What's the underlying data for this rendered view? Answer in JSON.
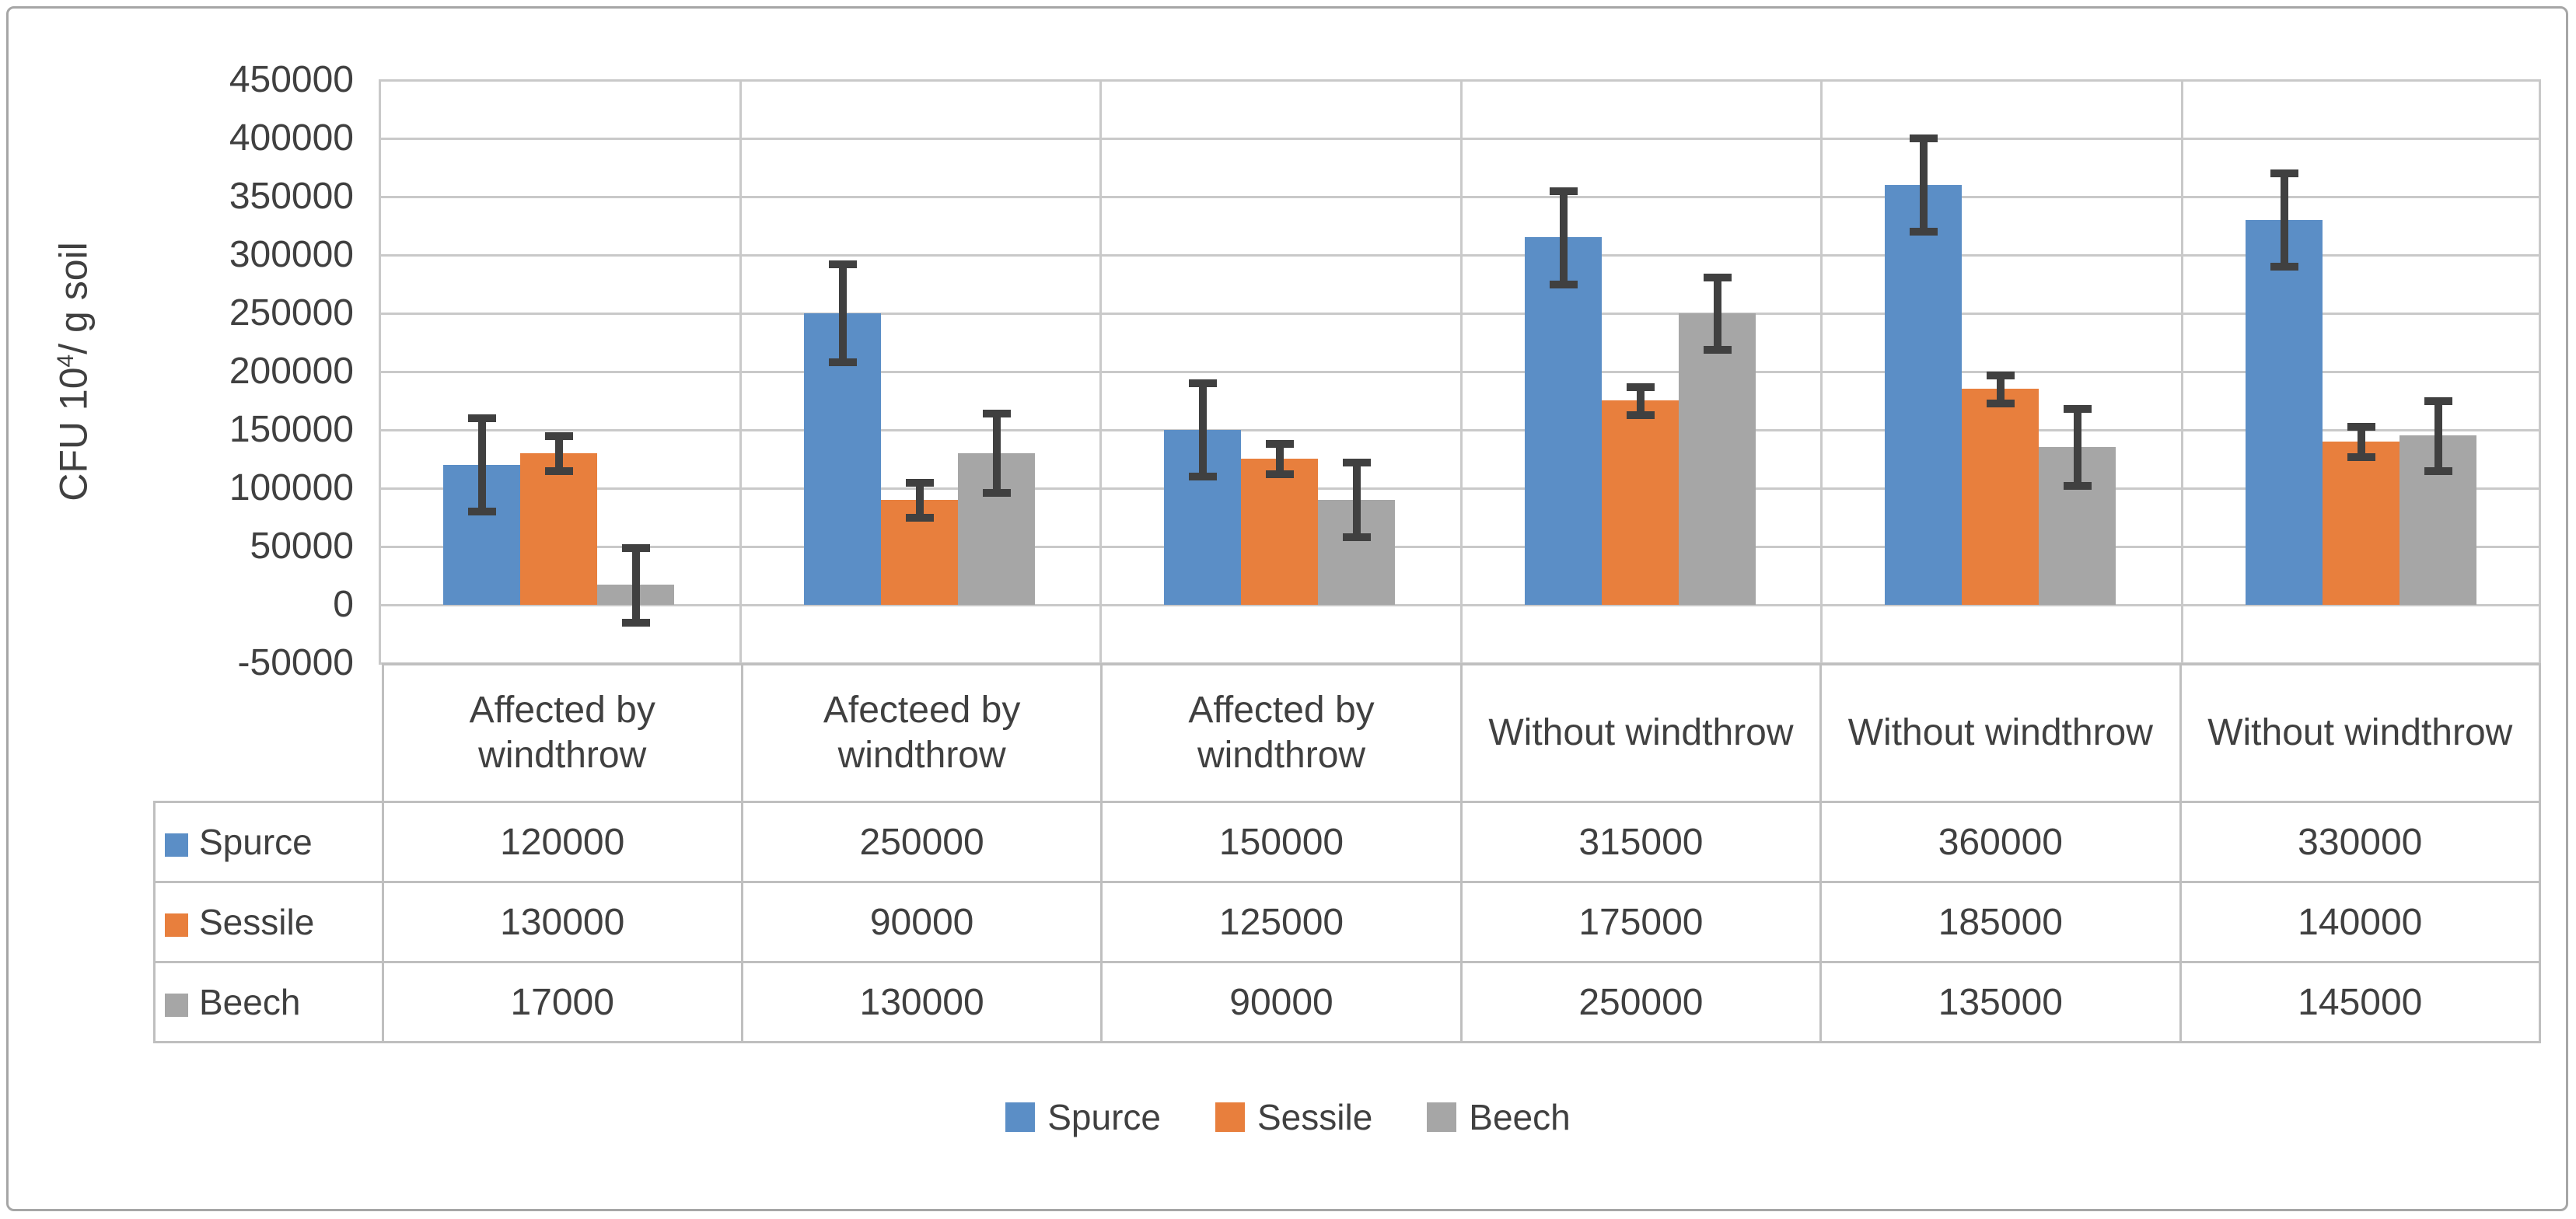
{
  "colors": {
    "spurce": "#5B8EC6",
    "sessile": "#E87F3D",
    "beech": "#A6A6A6",
    "error_bar": "#404040",
    "gridline": "#C9C9C9",
    "table_border": "#BFBFBF",
    "text": "#404040",
    "frame_border": "#A6A6A6"
  },
  "y_axis": {
    "title_prefix": "CFU 10",
    "title_sup": "4",
    "title_suffix": "/ g soil",
    "ticks": [
      "450000",
      "400000",
      "350000",
      "300000",
      "250000",
      "200000",
      "150000",
      "100000",
      "50000",
      "0",
      "-50000"
    ]
  },
  "chart_data": {
    "type": "bar",
    "title": "",
    "xlabel": "",
    "ylabel": "CFU 10^4 / g soil",
    "ylim": [
      -50000,
      450000
    ],
    "y_tick_step": 50000,
    "grid": true,
    "legend_position": "bottom",
    "data_table_with_legend_keys": true,
    "categories": [
      "Affected by windthrow",
      "Afecteed by windthrow",
      "Affected by windthrow",
      "Without windthrow",
      "Without windthrow",
      "Without windthrow"
    ],
    "series": [
      {
        "name": "Spurce",
        "color": "#5B8EC6",
        "values": [
          120000,
          250000,
          150000,
          315000,
          360000,
          330000
        ],
        "errors": [
          40000,
          42000,
          40000,
          40000,
          40000,
          40000
        ]
      },
      {
        "name": "Sessile",
        "color": "#E87F3D",
        "values": [
          130000,
          90000,
          125000,
          175000,
          185000,
          140000
        ],
        "errors": [
          15000,
          15000,
          13000,
          12000,
          12000,
          13000
        ]
      },
      {
        "name": "Beech",
        "color": "#A6A6A6",
        "values": [
          17000,
          130000,
          90000,
          250000,
          135000,
          145000
        ],
        "errors": [
          32000,
          34000,
          32000,
          31000,
          33000,
          30000
        ]
      }
    ]
  }
}
